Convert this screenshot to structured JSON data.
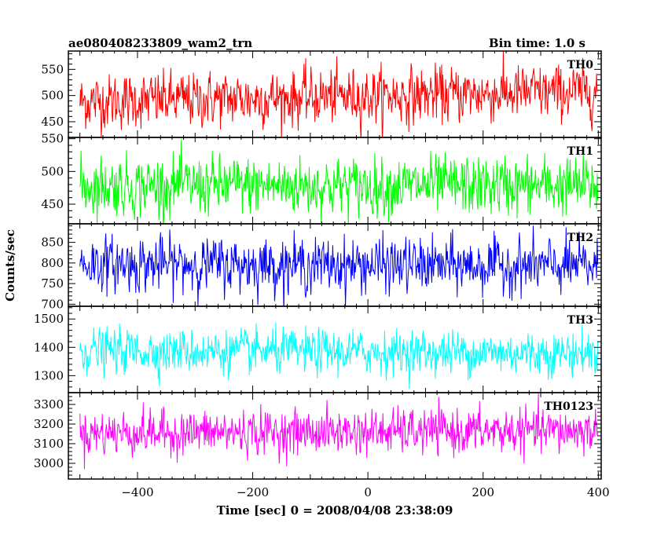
{
  "chart_data": {
    "type": "line",
    "title_left": "ae080408233809_wam2_trn",
    "title_right": "Bin time: 1.0 s",
    "xlabel": "Time [sec] 0 = 2008/04/08 23:38:09",
    "ylabel": "Counts/sec",
    "xlim": [
      -520,
      405
    ],
    "x_range": [
      -500,
      399
    ],
    "bin_time": 1.0,
    "xticks": [
      -400,
      -200,
      0,
      200,
      400
    ],
    "xtick_labels": [
      "−400",
      "−200",
      "0",
      "200",
      "400"
    ],
    "grid": false,
    "panels": [
      {
        "name": "TH0",
        "color": "#ff0000",
        "ylim": [
          420,
          585
        ],
        "yticks": [
          450,
          500,
          550
        ],
        "mean": 488,
        "trend": 20,
        "noise": 26
      },
      {
        "name": "TH1",
        "color": "#00ff00",
        "ylim": [
          420,
          552
        ],
        "yticks": [
          450,
          500,
          550
        ],
        "mean": 478,
        "trend": 0,
        "noise": 22
      },
      {
        "name": "TH2",
        "color": "#0000ff",
        "ylim": [
          695,
          895
        ],
        "yticks": [
          700,
          750,
          800,
          850
        ],
        "mean": 798,
        "trend": -6,
        "noise": 32
      },
      {
        "name": "TH3",
        "color": "#00ffff",
        "ylim": [
          1240,
          1545
        ],
        "yticks": [
          1300,
          1400,
          1500
        ],
        "mean": 1388,
        "trend": -8,
        "noise": 38
      },
      {
        "name": "TH0123",
        "color": "#ff00ff",
        "ylim": [
          2920,
          3360
        ],
        "yticks": [
          3000,
          3100,
          3200,
          3300
        ],
        "mean": 3155,
        "trend": 10,
        "noise": 55
      }
    ]
  }
}
